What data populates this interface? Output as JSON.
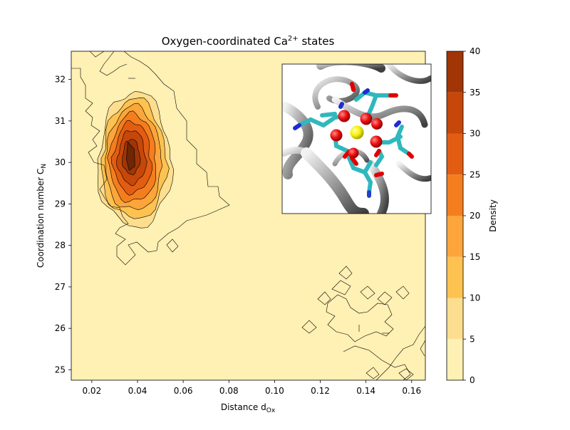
{
  "chart_data": {
    "type": "heatmap",
    "title": "Oxygen-coordinated Ca",
    "title_superscript": "2+",
    "title_suffix": " states",
    "xlabel": "Distance d",
    "xlabel_subscript": "Ox",
    "ylabel": "Coordination number C",
    "ylabel_subscript": "N",
    "xlim": [
      0.011,
      0.166
    ],
    "ylim": [
      24.75,
      32.68
    ],
    "xticks": [
      0.02,
      0.04,
      0.06,
      0.08,
      0.1,
      0.12,
      0.14,
      0.16
    ],
    "xtick_labels": [
      "0.02",
      "0.04",
      "0.06",
      "0.08",
      "0.10",
      "0.12",
      "0.14",
      "0.16"
    ],
    "yticks": [
      25,
      26,
      27,
      28,
      29,
      30,
      31,
      32
    ],
    "ytick_labels": [
      "25",
      "26",
      "27",
      "28",
      "29",
      "30",
      "31",
      "32"
    ],
    "colorbar": {
      "label": "Density",
      "ticks": [
        0,
        5,
        10,
        15,
        20,
        25,
        30,
        35,
        40
      ],
      "tick_labels": [
        "0",
        "5",
        "10",
        "15",
        "20",
        "25",
        "30",
        "35",
        "40"
      ],
      "levels": [
        0,
        5,
        10,
        15,
        20,
        25,
        30,
        35,
        40
      ],
      "colors": [
        "#fff0b3",
        "#fdde8e",
        "#fdc24f",
        "#fca53a",
        "#f47e1e",
        "#e25d12",
        "#c54709",
        "#a13505"
      ]
    },
    "peak": {
      "x": 0.037,
      "y": 30.15,
      "density": 40
    },
    "inset": {
      "description": "molecular structure rendering (Ca2+ ion coordinated by oxygen atoms)"
    }
  },
  "colors": {
    "background": "#fff0b3",
    "contour_line": "#000000",
    "ribbon": "#9a9a9a",
    "calcium": "#ffff00",
    "oxygen": "#ff0000",
    "carbon": "#2fb8bd",
    "nitrogen": "#1f2ccf"
  }
}
